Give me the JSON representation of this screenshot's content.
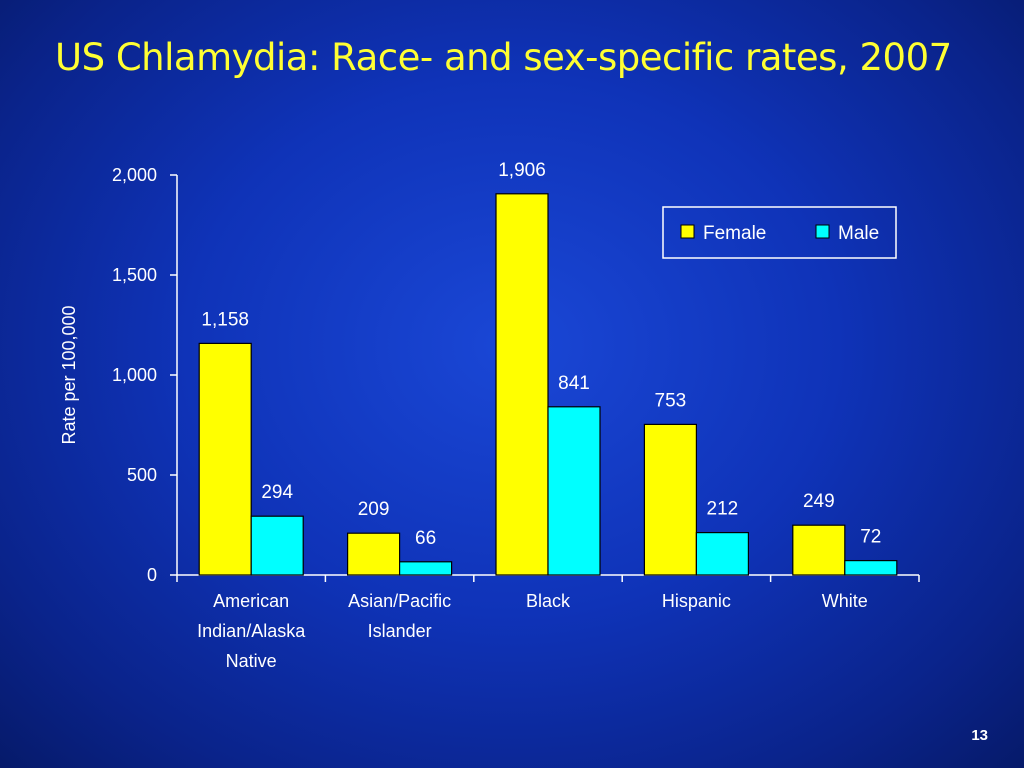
{
  "slide": {
    "title": "US Chlamydia: Race- and sex-specific rates, 2007",
    "page_number": "13"
  },
  "colors": {
    "female": "#ffff00",
    "male": "#00ffff",
    "axis": "#ffffff",
    "title": "#ffff33"
  },
  "chart_data": {
    "type": "bar",
    "title": "",
    "xlabel": "",
    "ylabel": "Rate per 100,000",
    "ylim": [
      0,
      2000
    ],
    "yticks": [
      0,
      500,
      1000,
      1500,
      2000
    ],
    "ytick_labels": [
      "0",
      "500",
      "1,000",
      "1,500",
      "2,000"
    ],
    "grid": false,
    "legend_position": "top-right",
    "categories": [
      [
        "American",
        "Indian/Alaska",
        "Native"
      ],
      [
        "Asian/Pacific",
        "Islander"
      ],
      [
        "Black"
      ],
      [
        "Hispanic"
      ],
      [
        "White"
      ]
    ],
    "series": [
      {
        "name": "Female",
        "values": [
          1158,
          209,
          1906,
          753,
          249
        ],
        "labels": [
          "1,158",
          "209",
          "1,906",
          "753",
          "249"
        ]
      },
      {
        "name": "Male",
        "values": [
          294,
          66,
          841,
          212,
          72
        ],
        "labels": [
          "294",
          "66",
          "841",
          "212",
          "72"
        ]
      }
    ]
  }
}
